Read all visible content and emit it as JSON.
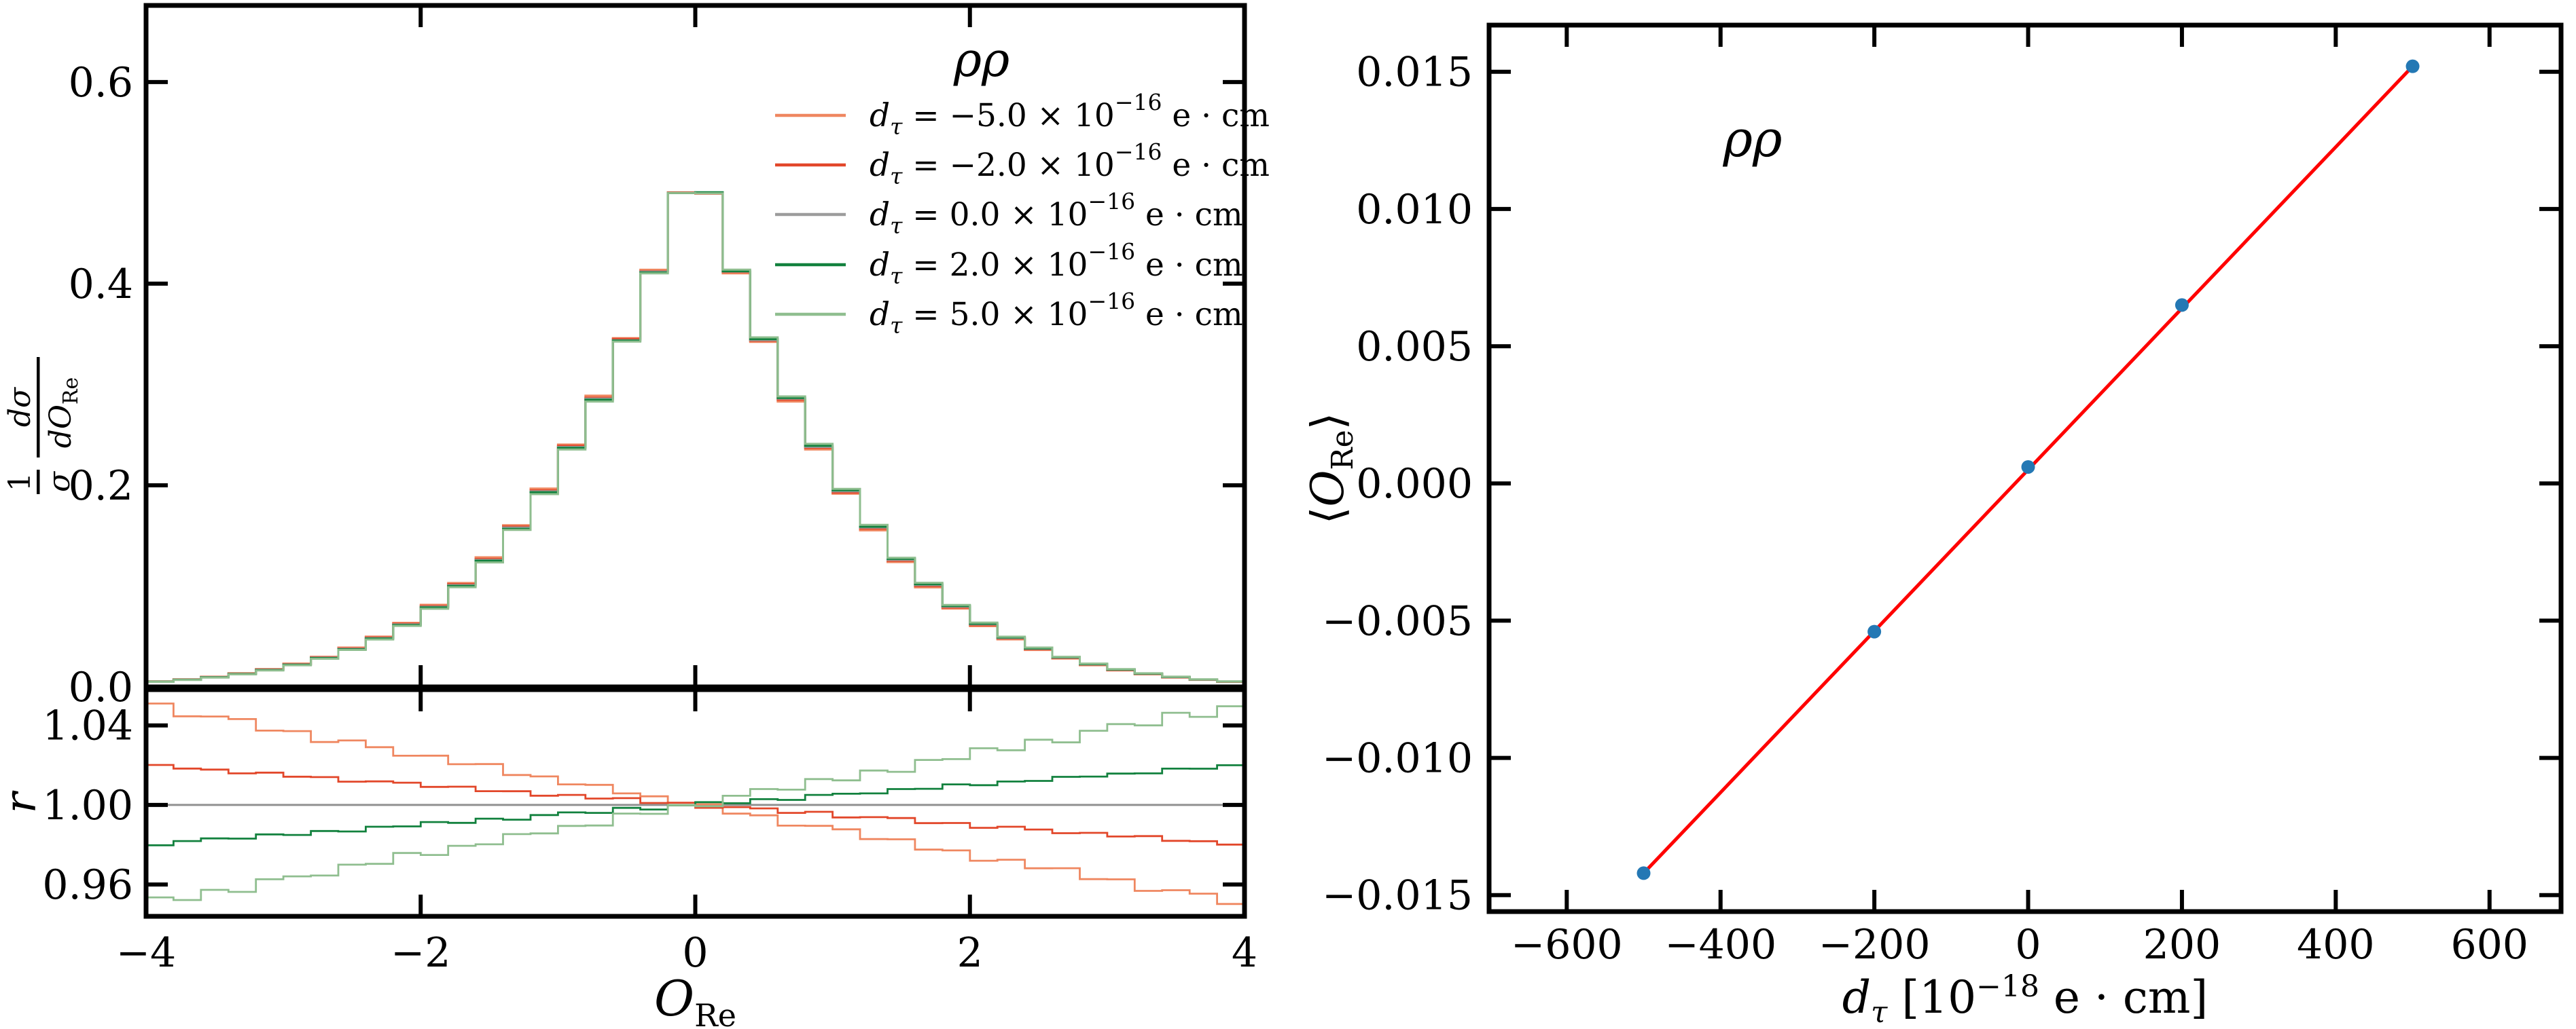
{
  "figure": {
    "background": "#ffffff"
  },
  "chart_data": [
    {
      "type": "step-histogram-with-ratio",
      "panel": "left",
      "legend": {
        "title": "ρρ",
        "var": "d",
        "var_sub": "τ",
        "equals": " = ",
        "times_base": " × 10",
        "exponent": "−16",
        "unit": " e · cm",
        "entries": [
          {
            "value": "−5.0",
            "color": "#EF8760"
          },
          {
            "value": "−2.0",
            "color": "#E2472A"
          },
          {
            "value": "0.0",
            "color": "#9C9C9C"
          },
          {
            "value": "2.0",
            "color": "#12813E"
          },
          {
            "value": "5.0",
            "color": "#8FBE8F"
          }
        ]
      },
      "xlabel": {
        "symbol": "O",
        "sub": "Re"
      },
      "ylabel": {
        "num1": "1",
        "den1": "σ",
        "num2": "dσ",
        "den2": "dO",
        "den2_sub": "Re"
      },
      "ratio_ylabel": "r",
      "xlim": [
        -4,
        4
      ],
      "ylim": [
        0,
        0.676
      ],
      "xticks": {
        "values": [
          -4,
          -2,
          0,
          2,
          4
        ],
        "labels": [
          "−4",
          "−2",
          "0",
          "2",
          "4"
        ]
      },
      "yticks": {
        "values": [
          0.0,
          0.2,
          0.4,
          0.6
        ],
        "labels": [
          "0.0",
          "0.2",
          "0.4",
          "0.6"
        ]
      },
      "ratio_ylim": [
        0.944,
        1.058
      ],
      "ratio_yticks": {
        "values": [
          0.96,
          1.0,
          1.04
        ],
        "labels": [
          "0.96",
          "1.00",
          "1.04"
        ]
      },
      "bin_start": -4,
      "bin_width": 0.2,
      "baseline_values": [
        0.0053,
        0.0073,
        0.0097,
        0.013,
        0.017,
        0.0223,
        0.029,
        0.0378,
        0.0485,
        0.062,
        0.0795,
        0.101,
        0.126,
        0.158,
        0.194,
        0.238,
        0.286,
        0.344,
        0.412,
        0.49,
        0.49,
        0.412,
        0.344,
        0.286,
        0.238,
        0.194,
        0.158,
        0.126,
        0.101,
        0.0795,
        0.062,
        0.0485,
        0.0378,
        0.029,
        0.0223,
        0.017,
        0.013,
        0.0097,
        0.0073,
        0.0053
      ],
      "noise_pattern": [
        0.55,
        -0.35,
        0.75,
        -0.55,
        0.25,
        0.65,
        -0.45,
        0.3,
        -0.7,
        0.4,
        0.1,
        -0.5,
        0.35,
        -0.25,
        0.6,
        -0.4,
        0.2,
        -0.3,
        0.45,
        -0.15,
        0.2,
        -0.45,
        0.55,
        -0.2,
        0.35,
        -0.55,
        0.25,
        0.5,
        -0.3,
        0.5,
        -0.4,
        0.3,
        -0.6,
        0.4,
        -0.2,
        0.65,
        -0.35,
        0.45,
        -0.65,
        0.3
      ],
      "series": [
        {
          "name": "dtau_m5",
          "color": "#EF8760",
          "ratio_slope": -0.0125,
          "noise_amp": 0.003,
          "noise_shift": 2
        },
        {
          "name": "dtau_m2",
          "color": "#E2472A",
          "ratio_slope": -0.005,
          "noise_amp": 0.0014,
          "noise_shift": 18
        },
        {
          "name": "dtau_0",
          "color": "#9C9C9C",
          "ratio_slope": 0,
          "noise_amp": 0,
          "noise_shift": 0
        },
        {
          "name": "dtau_p2",
          "color": "#12813E",
          "ratio_slope": 0.005,
          "noise_amp": 0.0014,
          "noise_shift": 25
        },
        {
          "name": "dtau_p5",
          "color": "#8FBE8F",
          "ratio_slope": 0.0125,
          "noise_amp": 0.0035,
          "noise_shift": 5
        }
      ],
      "ref_line_color": "#909090"
    },
    {
      "type": "scatter-line",
      "panel": "right",
      "annotation": "ρρ",
      "xlabel": {
        "var": "d",
        "sub": "τ",
        "pre": " [10",
        "exp": "−18",
        "post": " e · cm]"
      },
      "ylabel": {
        "open": "⟨",
        "symbol": "O",
        "sub": "Re",
        "close": "⟩"
      },
      "xlim": [
        -701,
        693
      ],
      "ylim": [
        -0.0156,
        0.0167
      ],
      "xticks": {
        "values": [
          -600,
          -400,
          -200,
          0,
          200,
          400,
          600
        ],
        "labels": [
          "−600",
          "−400",
          "−200",
          "0",
          "200",
          "400",
          "600"
        ]
      },
      "yticks": {
        "values": [
          -0.015,
          -0.01,
          -0.005,
          0,
          0.005,
          0.01,
          0.015
        ],
        "labels": [
          "−0.015",
          "−0.010",
          "−0.005",
          "0.000",
          "0.005",
          "0.010",
          "0.015"
        ]
      },
      "x": [
        -500,
        -200,
        0,
        200,
        500
      ],
      "y": [
        -0.0142,
        -0.0054,
        0.0006,
        0.0065,
        0.0152
      ],
      "fit_line": {
        "x1": -500,
        "y1": -0.0142,
        "x2": 500,
        "y2": 0.0152,
        "color": "#FF0000"
      },
      "marker_color": "#2478B4"
    }
  ]
}
